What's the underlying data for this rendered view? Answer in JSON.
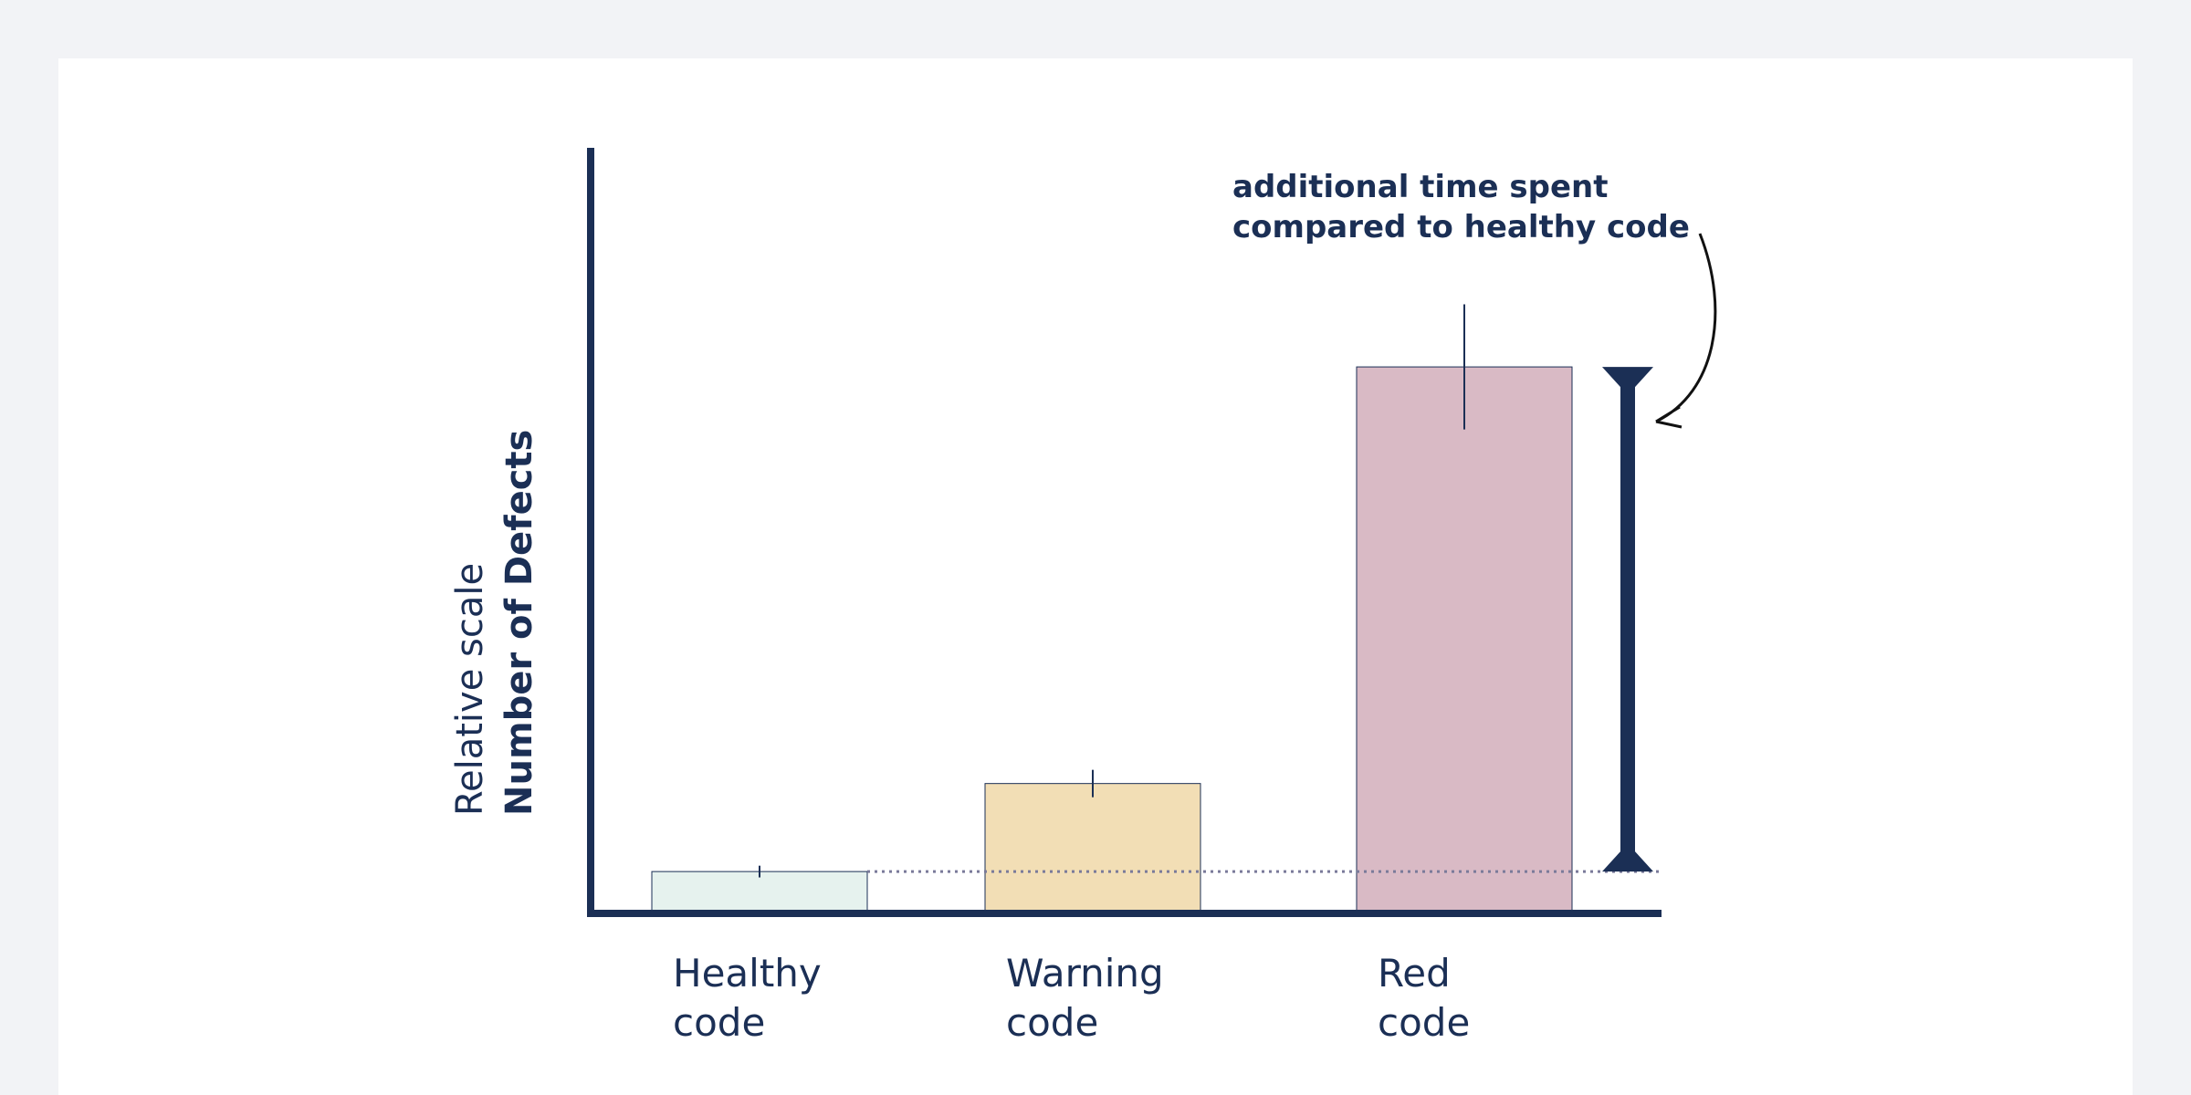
{
  "chart_data": {
    "type": "bar",
    "y_label": [
      "Relative scale",
      "Number of Defects"
    ],
    "annotation": [
      "additional time spent",
      "compared to healthy code"
    ],
    "categories": [
      "Healthy code",
      "Warning code",
      "Red code"
    ],
    "values": [
      1,
      3.25,
      13.9
    ],
    "errors": [
      0.15,
      0.35,
      1.6
    ],
    "colors": [
      "#e6f2ee",
      "#f2deb5",
      "#d9bac5"
    ],
    "ylim": [
      0,
      19.5
    ]
  }
}
